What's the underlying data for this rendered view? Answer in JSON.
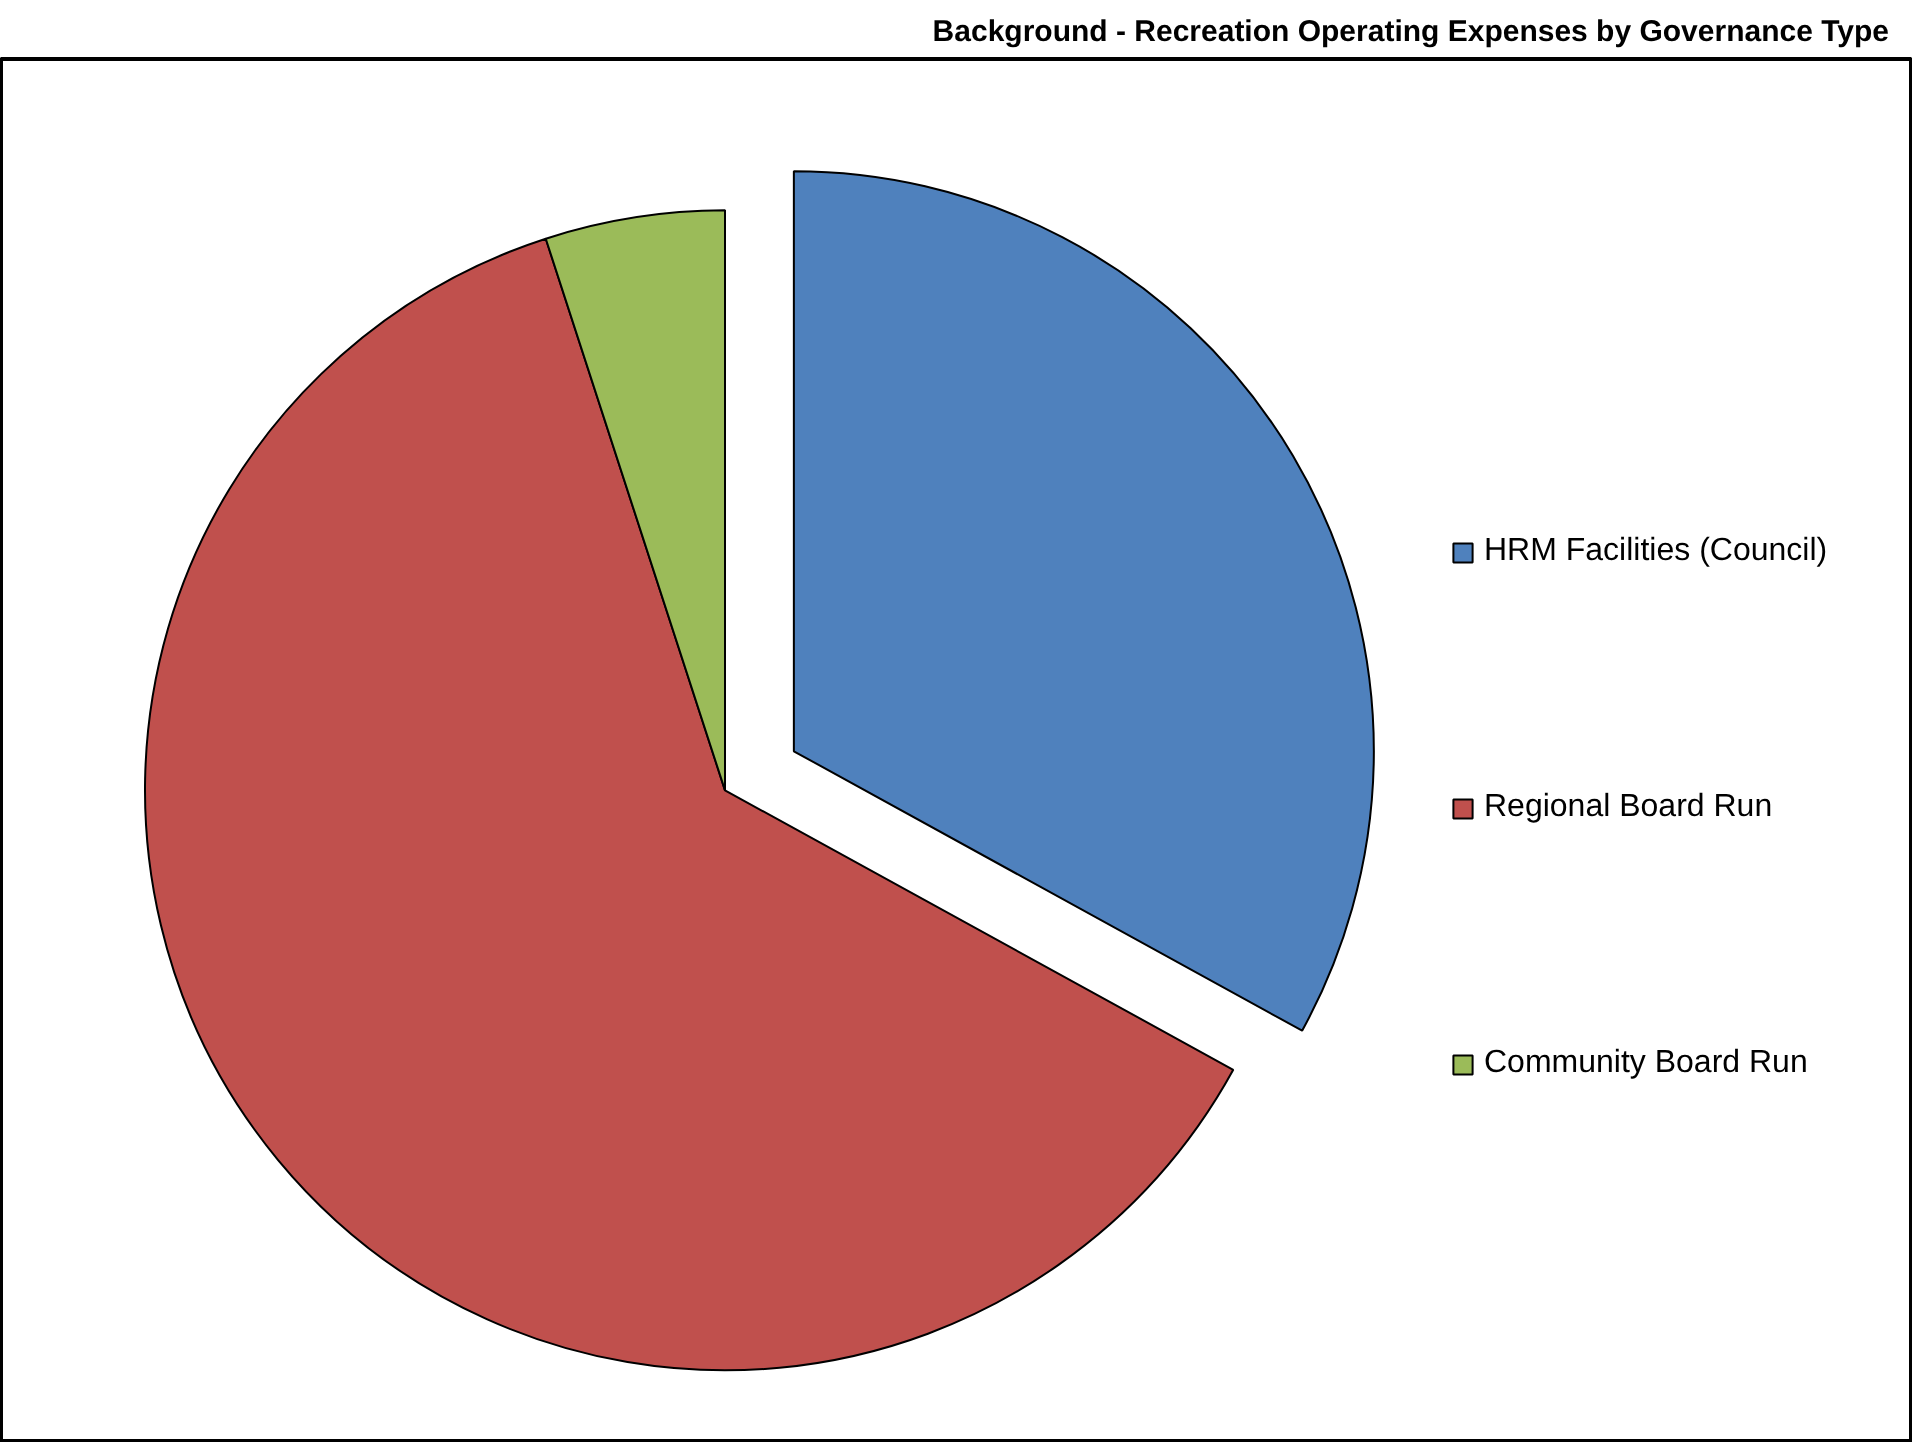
{
  "chart_data": {
    "type": "pie",
    "title": "Background - Recreation Operating Expenses by Governance Type",
    "categories": [
      "HRM Facilities (Council)",
      "Regional Board Run",
      "Community Board Run"
    ],
    "values": [
      33,
      62,
      5
    ],
    "colors": [
      "#4f81bd",
      "#c0504d",
      "#9bbb59"
    ],
    "legend": "right"
  }
}
